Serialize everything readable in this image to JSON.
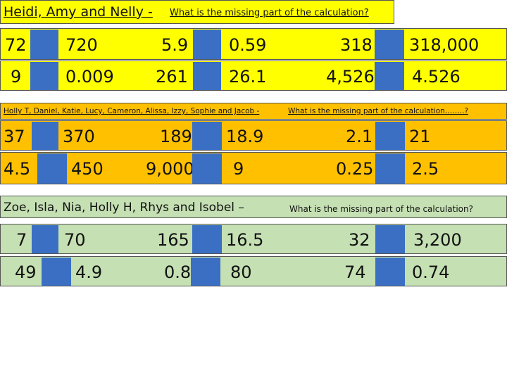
{
  "sections": [
    {
      "heading_names": "Heidi, Amy and Nelly - ",
      "heading_question": "What is the missing part of the calculation?",
      "color": "#ffff00",
      "rows": [
        [
          "72",
          "720",
          "5.9",
          "0.59",
          "318",
          "318,000"
        ],
        [
          "9",
          "0.009",
          "261",
          "26.1",
          "4,526",
          "4.526"
        ]
      ]
    },
    {
      "heading_names": "Holly T, Daniel, Katie, Lucy, Cameron, Alissa, Izzy, Sophie and Jacob - ",
      "heading_question": "What is the missing part of the calculation……..?",
      "color": "#ffc000",
      "rows": [
        [
          "37",
          "370",
          "189",
          "18.9",
          "2.1",
          "21"
        ],
        [
          "4.5",
          "450",
          "9,000",
          "9",
          "0.25",
          "2.5"
        ]
      ]
    },
    {
      "heading_names": "Zoe, Isla, Nia, Holly H, Rhys and Isobel – ",
      "heading_question": "What is the missing part of the calculation?",
      "color": "#c5e0b3",
      "rows": [
        [
          "7",
          "70",
          "165",
          "16.5",
          "32",
          "3,200"
        ],
        [
          "49",
          "4.9",
          "0.8",
          "80",
          "74",
          "0.74"
        ]
      ]
    }
  ],
  "missing_box_color": "#3a6fc4"
}
